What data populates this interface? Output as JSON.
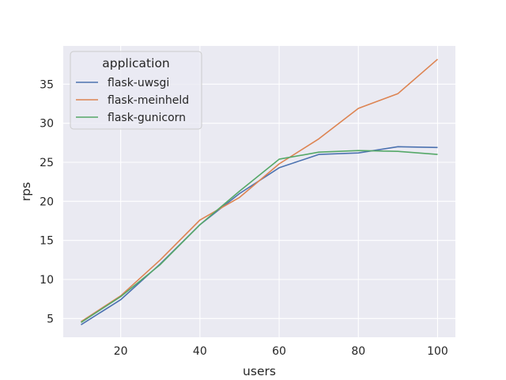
{
  "chart_data": {
    "type": "line",
    "xlabel": "users",
    "ylabel": "rps",
    "xlim": [
      5.5,
      104.5
    ],
    "ylim": [
      2.6,
      39.9
    ],
    "xticks": [
      20,
      40,
      60,
      80,
      100
    ],
    "yticks": [
      5,
      10,
      15,
      20,
      25,
      30,
      35
    ],
    "grid": true,
    "background": "#eaeaf2",
    "legend": {
      "title": "application",
      "placement": "top-left"
    },
    "x": [
      10,
      20,
      30,
      40,
      50,
      60,
      70,
      80,
      90,
      100
    ],
    "series": [
      {
        "name": "flask-uwsgi",
        "color": "#4c72b0",
        "values": [
          4.2,
          7.4,
          12.0,
          17.0,
          21.0,
          24.3,
          26.0,
          26.2,
          27.0,
          26.9
        ]
      },
      {
        "name": "flask-meinheld",
        "color": "#dd8452",
        "values": [
          4.6,
          7.9,
          12.5,
          17.6,
          20.5,
          24.8,
          28.0,
          31.9,
          33.8,
          38.2
        ]
      },
      {
        "name": "flask-gunicorn",
        "color": "#55a868",
        "values": [
          4.5,
          7.8,
          11.9,
          17.0,
          21.3,
          25.4,
          26.3,
          26.5,
          26.4,
          26.0
        ]
      }
    ]
  }
}
